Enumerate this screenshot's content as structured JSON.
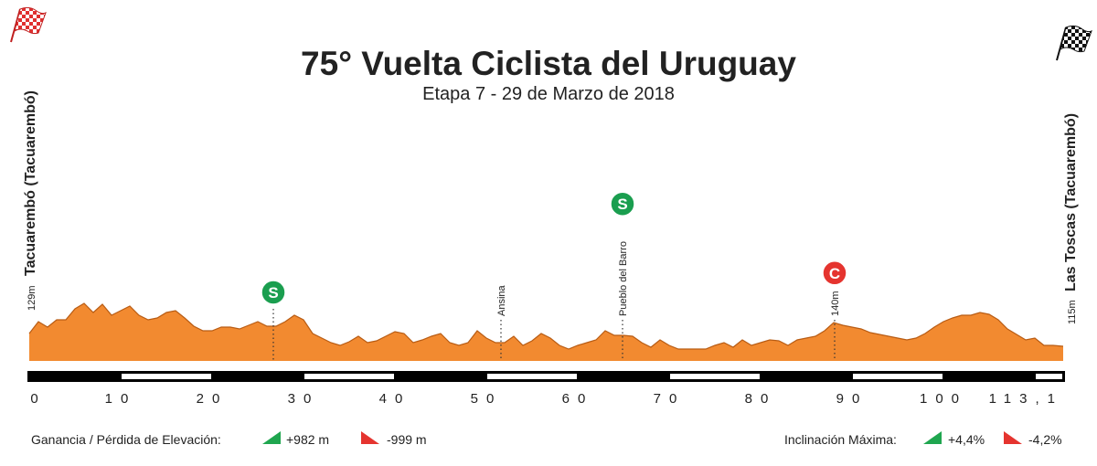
{
  "chart_data": {
    "type": "area",
    "title": "75° Vuelta Ciclista del Uruguay",
    "subtitle": "Etapa 7 - 29 de Marzo de 2018",
    "start": {
      "elevation_label": "129m",
      "name": "Tacuarembó (Tacuarembó)"
    },
    "finish": {
      "elevation_label": "115m",
      "name": "Las Toscas (Tacuarembó)"
    },
    "color": "#f28a30",
    "x": [
      0,
      1,
      2,
      3,
      4,
      5,
      6,
      7,
      8,
      9,
      10,
      11,
      12,
      13,
      14,
      15,
      16,
      17,
      18,
      19,
      20,
      21,
      22,
      23,
      24,
      25,
      26,
      27,
      28,
      29,
      30,
      31,
      32,
      33,
      34,
      35,
      36,
      37,
      38,
      39,
      40,
      41,
      42,
      43,
      44,
      45,
      46,
      47,
      48,
      49,
      50,
      51,
      52,
      53,
      54,
      55,
      56,
      57,
      58,
      59,
      60,
      61,
      62,
      63,
      64,
      65,
      66,
      67,
      68,
      69,
      70,
      71,
      72,
      73,
      74,
      75,
      76,
      77,
      78,
      79,
      80,
      81,
      82,
      83,
      84,
      85,
      86,
      87,
      88,
      89,
      90,
      91,
      92,
      93,
      94,
      95,
      96,
      97,
      98,
      99,
      100,
      101,
      102,
      103,
      104,
      105,
      106,
      107,
      108,
      109,
      110,
      111,
      112,
      113.1
    ],
    "values": [
      129,
      142,
      136,
      144,
      144,
      156,
      162,
      152,
      161,
      149,
      154,
      159,
      149,
      144,
      146,
      152,
      154,
      146,
      137,
      132,
      132,
      136,
      136,
      134,
      138,
      142,
      137,
      137,
      142,
      149,
      144,
      129,
      124,
      119,
      116,
      120,
      126,
      119,
      121,
      126,
      131,
      129,
      119,
      122,
      126,
      129,
      119,
      116,
      119,
      132,
      124,
      119,
      119,
      126,
      116,
      121,
      129,
      124,
      116,
      112,
      116,
      119,
      122,
      132,
      127,
      127,
      126,
      119,
      114,
      122,
      116,
      112,
      112,
      112,
      112,
      116,
      119,
      114,
      122,
      116,
      119,
      122,
      121,
      116,
      122,
      124,
      126,
      132,
      141,
      138,
      136,
      134,
      130,
      128,
      126,
      124,
      122,
      124,
      129,
      136,
      142,
      146,
      149,
      149,
      152,
      150,
      144,
      134,
      128,
      122,
      124,
      116,
      116,
      115
    ],
    "xlim": [
      0,
      113.1
    ],
    "ylim": [
      99,
      200
    ],
    "xticks": [
      0,
      10,
      20,
      30,
      40,
      50,
      60,
      70,
      80,
      90,
      100,
      {
        "value": 113.1,
        "label": "113,1"
      }
    ],
    "points": [
      {
        "x": 26.7,
        "marker": "S",
        "color": "#1a9e4f"
      },
      {
        "x": 51.6,
        "label": "Ansina"
      },
      {
        "x": 64.9,
        "marker": "S",
        "color": "#1a9e4f",
        "label": "Pueblo del Barro"
      },
      {
        "x": 88.1,
        "marker": "C",
        "color": "#e5342f",
        "label": "140m"
      }
    ],
    "summary": {
      "elevation_caption": "Ganancia / Pérdida de Elevación:",
      "gain": "+982 m",
      "loss": "-999 m",
      "slope_caption": "Inclinación Máxima:",
      "max_up": "+4,4%",
      "max_down": "-4,2%"
    }
  }
}
